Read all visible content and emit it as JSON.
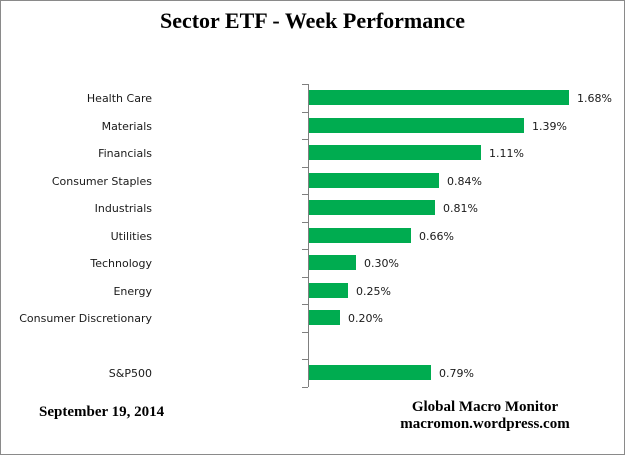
{
  "title": "Sector ETF - Week Performance",
  "footer": {
    "date": "September 19, 2014",
    "source_line1": "Global Macro Monitor",
    "source_line2": "macromon.wordpress.com"
  },
  "colors": {
    "bar": "#00ac50",
    "axis": "#7f7f7f",
    "border": "#8a8a8a",
    "label_text": "#1a1a1a"
  },
  "chart_data": {
    "type": "bar",
    "orientation": "horizontal",
    "title": "Sector ETF - Week Performance",
    "categories": [
      "Health Care",
      "Materials",
      "Financials",
      "Consumer Staples",
      "Industrials",
      "Utilities",
      "Technology",
      "Energy",
      "Consumer Discretionary",
      "",
      "S&P500"
    ],
    "values": [
      1.68,
      1.39,
      1.11,
      0.84,
      0.81,
      0.66,
      0.3,
      0.25,
      0.2,
      null,
      0.79
    ],
    "data_labels": [
      "1.68%",
      "1.39%",
      "1.11%",
      "0.84%",
      "0.81%",
      "0.66%",
      "0.30%",
      "0.25%",
      "0.20%",
      "",
      "0.79%"
    ],
    "xlabel": "",
    "ylabel": "",
    "xlim": [
      0,
      1.75
    ],
    "grid": false,
    "legend": "none",
    "data_label_position": "outside-end",
    "bar_color": "#00ac50"
  }
}
